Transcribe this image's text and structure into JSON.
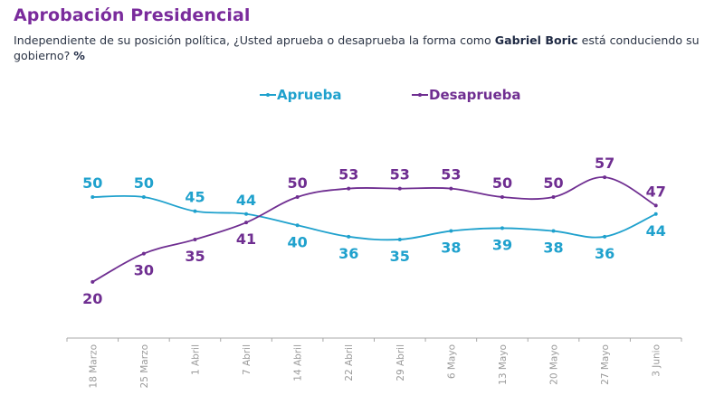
{
  "header": {
    "title": "Aprobación Presidencial",
    "subtitle_pre": "Independiente de su posición política, ¿Usted aprueba o desaprueba la forma como ",
    "subtitle_bold": "Gabriel Boric",
    "subtitle_post": " está conduciendo su gobierno? ",
    "subtitle_unit": "%"
  },
  "colors": {
    "aprueba": "#1fa1cd",
    "desaprueba": "#6f2e91",
    "title": "#7a2b9c",
    "axis": "#9a9a9a"
  },
  "chart_data": {
    "type": "line",
    "title": "Aprobación Presidencial",
    "subtitle": "Independiente de su posición política, ¿Usted aprueba o desaprueba la forma como Gabriel Boric está conduciendo su gobierno? %",
    "xlabel": "",
    "ylabel": "%",
    "categories": [
      "18 Marzo",
      "25 Marzo",
      "1 Abril",
      "7 Abril",
      "14 Abril",
      "22 Abril",
      "29 Abril",
      "6 Mayo",
      "13 Mayo",
      "20 Mayo",
      "27 Mayo",
      "3 Junio"
    ],
    "series": [
      {
        "name": "Aprueba",
        "values": [
          50,
          50,
          45,
          44,
          40,
          36,
          35,
          38,
          39,
          38,
          36,
          44
        ],
        "labels_position": [
          "above",
          "above",
          "above",
          "above",
          "below",
          "below",
          "below",
          "below",
          "below",
          "below",
          "below",
          "below"
        ]
      },
      {
        "name": "Desaprueba",
        "values": [
          20,
          30,
          35,
          41,
          50,
          53,
          53,
          53,
          50,
          50,
          57,
          47
        ],
        "labels_position": [
          "below",
          "below",
          "below",
          "below",
          "above",
          "above",
          "above",
          "above",
          "above",
          "above",
          "above",
          "above"
        ]
      }
    ],
    "legend": "top-center",
    "grid": false,
    "y_axis_visible": false,
    "data_labels": true,
    "x_tick_rotation": -90
  }
}
